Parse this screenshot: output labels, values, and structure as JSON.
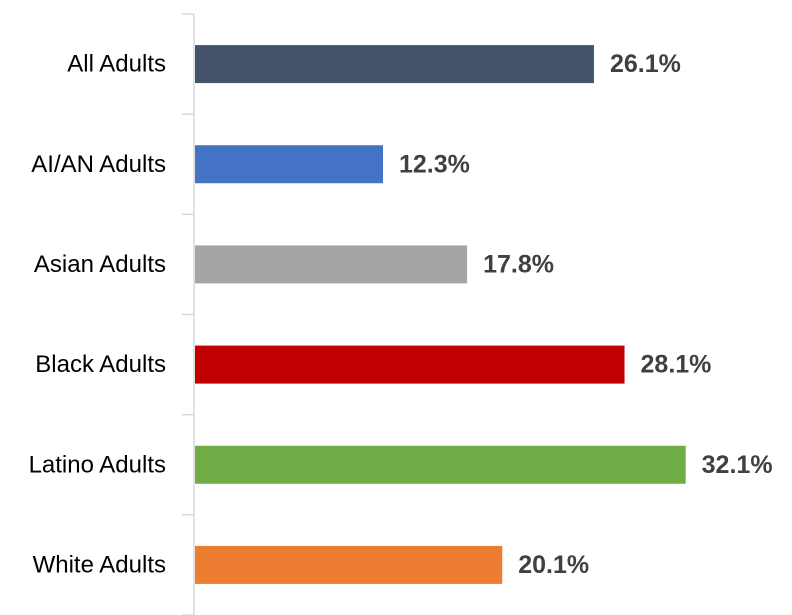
{
  "chart_data": {
    "type": "bar",
    "orientation": "horizontal",
    "categories": [
      "All Adults",
      "AI/AN Adults",
      "Asian Adults",
      "Black Adults",
      "Latino Adults",
      "White Adults"
    ],
    "values": [
      26.1,
      12.3,
      17.8,
      28.1,
      32.1,
      20.1
    ],
    "value_labels": [
      "26.1%",
      "12.3%",
      "17.8%",
      "28.1%",
      "32.1%",
      "20.1%"
    ],
    "colors": [
      "#44546a",
      "#4472c4",
      "#a5a5a5",
      "#c00000",
      "#70ad47",
      "#ed7d31"
    ],
    "xlim": [
      0,
      35
    ],
    "grid": false,
    "legend": "none"
  }
}
